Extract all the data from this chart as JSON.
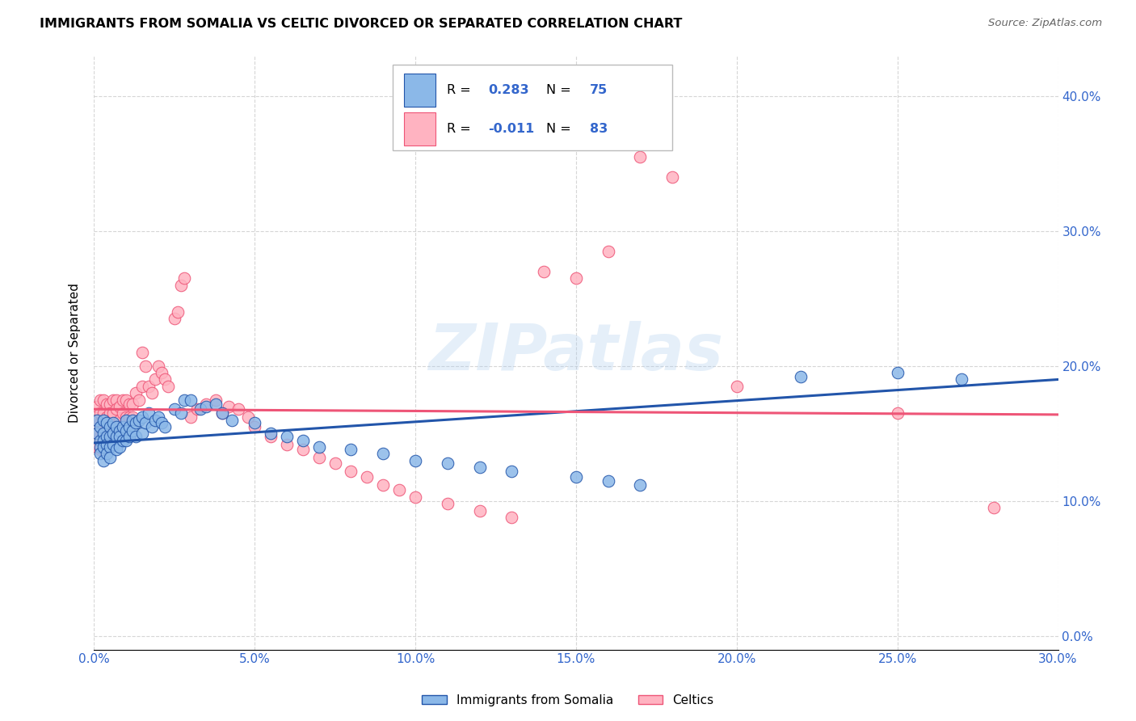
{
  "title": "IMMIGRANTS FROM SOMALIA VS CELTIC DIVORCED OR SEPARATED CORRELATION CHART",
  "source": "Source: ZipAtlas.com",
  "xlim": [
    0.0,
    0.3
  ],
  "ylim": [
    -0.01,
    0.43
  ],
  "watermark_text": "ZIPatlas",
  "legend_label1": "Immigrants from Somalia",
  "legend_label2": "Celtics",
  "r1": "0.283",
  "n1": "75",
  "r2": "-0.011",
  "n2": "83",
  "color_blue": "#8BB8E8",
  "color_pink": "#FFB3C1",
  "color_line_blue": "#2255AA",
  "color_line_pink": "#EE5577",
  "ylabel": "Divorced or Separated",
  "blue_x": [
    0.001,
    0.001,
    0.002,
    0.002,
    0.002,
    0.002,
    0.003,
    0.003,
    0.003,
    0.003,
    0.003,
    0.004,
    0.004,
    0.004,
    0.004,
    0.005,
    0.005,
    0.005,
    0.005,
    0.006,
    0.006,
    0.006,
    0.007,
    0.007,
    0.007,
    0.008,
    0.008,
    0.008,
    0.009,
    0.009,
    0.01,
    0.01,
    0.01,
    0.011,
    0.011,
    0.012,
    0.012,
    0.013,
    0.013,
    0.014,
    0.015,
    0.015,
    0.016,
    0.017,
    0.018,
    0.019,
    0.02,
    0.021,
    0.022,
    0.025,
    0.027,
    0.028,
    0.03,
    0.033,
    0.035,
    0.038,
    0.04,
    0.043,
    0.05,
    0.055,
    0.06,
    0.065,
    0.07,
    0.08,
    0.09,
    0.1,
    0.11,
    0.12,
    0.13,
    0.15,
    0.16,
    0.17,
    0.22,
    0.25,
    0.27
  ],
  "blue_y": [
    0.16,
    0.15,
    0.155,
    0.145,
    0.14,
    0.135,
    0.16,
    0.15,
    0.145,
    0.14,
    0.13,
    0.158,
    0.148,
    0.142,
    0.135,
    0.155,
    0.148,
    0.14,
    0.132,
    0.158,
    0.15,
    0.142,
    0.155,
    0.148,
    0.138,
    0.152,
    0.148,
    0.14,
    0.155,
    0.145,
    0.16,
    0.152,
    0.145,
    0.155,
    0.148,
    0.16,
    0.152,
    0.158,
    0.148,
    0.16,
    0.162,
    0.15,
    0.158,
    0.165,
    0.155,
    0.16,
    0.162,
    0.158,
    0.155,
    0.168,
    0.165,
    0.175,
    0.175,
    0.168,
    0.17,
    0.172,
    0.165,
    0.16,
    0.158,
    0.15,
    0.148,
    0.145,
    0.14,
    0.138,
    0.135,
    0.13,
    0.128,
    0.125,
    0.122,
    0.118,
    0.115,
    0.112,
    0.192,
    0.195,
    0.19
  ],
  "pink_x": [
    0.001,
    0.001,
    0.001,
    0.001,
    0.002,
    0.002,
    0.002,
    0.002,
    0.002,
    0.003,
    0.003,
    0.003,
    0.003,
    0.004,
    0.004,
    0.004,
    0.004,
    0.005,
    0.005,
    0.005,
    0.005,
    0.006,
    0.006,
    0.006,
    0.007,
    0.007,
    0.007,
    0.008,
    0.008,
    0.009,
    0.009,
    0.01,
    0.01,
    0.011,
    0.011,
    0.012,
    0.012,
    0.013,
    0.014,
    0.015,
    0.015,
    0.016,
    0.017,
    0.018,
    0.019,
    0.02,
    0.021,
    0.022,
    0.023,
    0.025,
    0.026,
    0.027,
    0.028,
    0.03,
    0.032,
    0.035,
    0.038,
    0.04,
    0.042,
    0.045,
    0.048,
    0.05,
    0.055,
    0.06,
    0.065,
    0.07,
    0.075,
    0.08,
    0.085,
    0.09,
    0.095,
    0.1,
    0.11,
    0.12,
    0.13,
    0.14,
    0.15,
    0.16,
    0.17,
    0.18,
    0.2,
    0.25,
    0.28
  ],
  "pink_y": [
    0.17,
    0.16,
    0.15,
    0.14,
    0.175,
    0.165,
    0.158,
    0.148,
    0.138,
    0.175,
    0.165,
    0.155,
    0.145,
    0.172,
    0.162,
    0.155,
    0.145,
    0.172,
    0.165,
    0.158,
    0.148,
    0.175,
    0.165,
    0.155,
    0.175,
    0.168,
    0.158,
    0.17,
    0.16,
    0.175,
    0.165,
    0.175,
    0.162,
    0.172,
    0.162,
    0.172,
    0.162,
    0.18,
    0.175,
    0.21,
    0.185,
    0.2,
    0.185,
    0.18,
    0.19,
    0.2,
    0.195,
    0.19,
    0.185,
    0.235,
    0.24,
    0.26,
    0.265,
    0.162,
    0.168,
    0.172,
    0.175,
    0.165,
    0.17,
    0.168,
    0.162,
    0.155,
    0.148,
    0.142,
    0.138,
    0.132,
    0.128,
    0.122,
    0.118,
    0.112,
    0.108,
    0.103,
    0.098,
    0.093,
    0.088,
    0.27,
    0.265,
    0.285,
    0.355,
    0.34,
    0.185,
    0.165,
    0.095
  ],
  "x_ticks": [
    0.0,
    0.05,
    0.1,
    0.15,
    0.2,
    0.25,
    0.3
  ],
  "y_ticks": [
    0.0,
    0.1,
    0.2,
    0.3,
    0.4
  ],
  "grid_color": "#CCCCCC",
  "background": "#FFFFFF"
}
